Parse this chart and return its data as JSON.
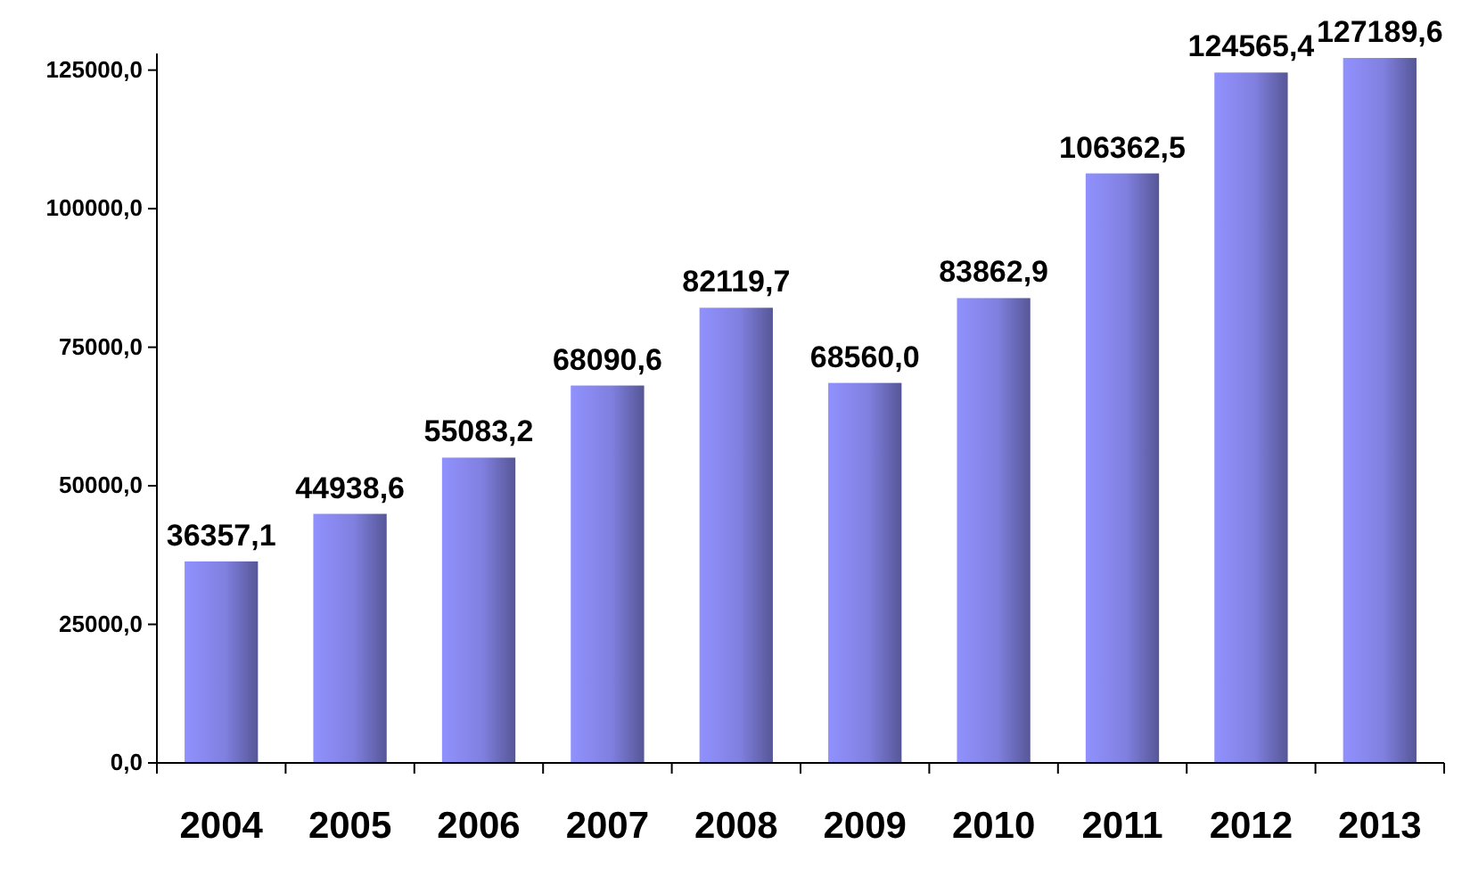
{
  "chart_data": {
    "type": "bar",
    "categories": [
      "2004",
      "2005",
      "2006",
      "2007",
      "2008",
      "2009",
      "2010",
      "2011",
      "2012",
      "2013"
    ],
    "values": [
      36357.1,
      44938.6,
      55083.2,
      68090.6,
      82119.7,
      68560.0,
      83862.9,
      106362.5,
      124565.4,
      127189.6
    ],
    "value_labels": [
      "36357,1",
      "44938,6",
      "55083,2",
      "68090,6",
      "82119,7",
      "68560,0",
      "83862,9",
      "106362,5",
      "124565,4",
      "127189,6"
    ],
    "color": "#8080e0",
    "ylim": [
      0,
      128000
    ],
    "yticks": [
      {
        "value": 0,
        "label": "0,0"
      },
      {
        "value": 25000,
        "label": "25000,0"
      },
      {
        "value": 50000,
        "label": "50000,0"
      },
      {
        "value": 75000,
        "label": "75000,0"
      },
      {
        "value": 100000,
        "label": "100000,0"
      },
      {
        "value": 125000,
        "label": "125000,0"
      }
    ],
    "grid": false
  }
}
